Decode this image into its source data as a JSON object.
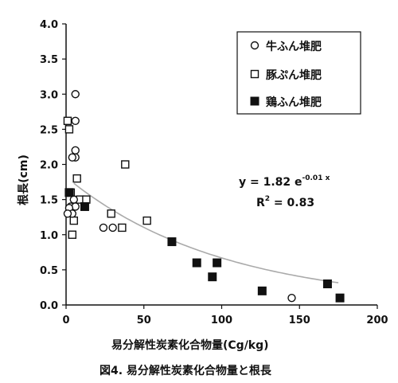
{
  "chart_data": {
    "type": "scatter",
    "caption": "図4. 易分解性炭素化合物量と根長",
    "xlabel": "易分解性炭素化合物量(Cg/kg)",
    "ylabel": "根長(cm)",
    "xlim": [
      0,
      200
    ],
    "ylim": [
      0,
      4.0
    ],
    "xticks": [
      "0",
      "50",
      "100",
      "150",
      "200"
    ],
    "yticks": [
      "0.0",
      "0.5",
      "1.0",
      "1.5",
      "2.0",
      "2.5",
      "3.0",
      "3.5",
      "4.0"
    ],
    "legend_position": "top-right",
    "grid": false,
    "series": [
      {
        "name": "牛ふん堆肥",
        "marker": "open-circle",
        "points": [
          [
            6,
            3.0
          ],
          [
            6,
            2.62
          ],
          [
            6,
            2.2
          ],
          [
            6,
            2.1
          ],
          [
            4,
            2.1
          ],
          [
            2,
            1.6
          ],
          [
            5,
            1.5
          ],
          [
            3,
            1.4
          ],
          [
            6,
            1.4
          ],
          [
            2,
            1.38
          ],
          [
            4,
            1.3
          ],
          [
            1,
            1.3
          ],
          [
            24,
            1.1
          ],
          [
            30,
            1.1
          ],
          [
            145,
            0.1
          ]
        ]
      },
      {
        "name": "豚ぷん堆肥",
        "marker": "open-square",
        "points": [
          [
            1,
            2.62
          ],
          [
            2,
            2.5
          ],
          [
            38,
            2.0
          ],
          [
            7,
            1.8
          ],
          [
            3,
            1.6
          ],
          [
            9,
            1.5
          ],
          [
            13,
            1.5
          ],
          [
            5,
            1.2
          ],
          [
            4,
            1.0
          ],
          [
            29,
            1.3
          ],
          [
            52,
            1.2
          ],
          [
            36,
            1.1
          ]
        ]
      },
      {
        "name": "鶏ふん堆肥",
        "marker": "filled-square",
        "points": [
          [
            2,
            1.6
          ],
          [
            12,
            1.4
          ],
          [
            68,
            0.9
          ],
          [
            84,
            0.6
          ],
          [
            97,
            0.6
          ],
          [
            94,
            0.4
          ],
          [
            126,
            0.2
          ],
          [
            168,
            0.3
          ],
          [
            176,
            0.1
          ]
        ]
      }
    ],
    "trendline": {
      "type": "exponential",
      "a": 1.82,
      "b": -0.01,
      "x_range": [
        5,
        175
      ],
      "color": "#aaaaaa"
    },
    "equation": {
      "main": "y = 1.82 e",
      "exponent": "-0.01 x",
      "r2_label": "R",
      "r2_sup": "2",
      "r2_value": " = 0.83"
    }
  }
}
